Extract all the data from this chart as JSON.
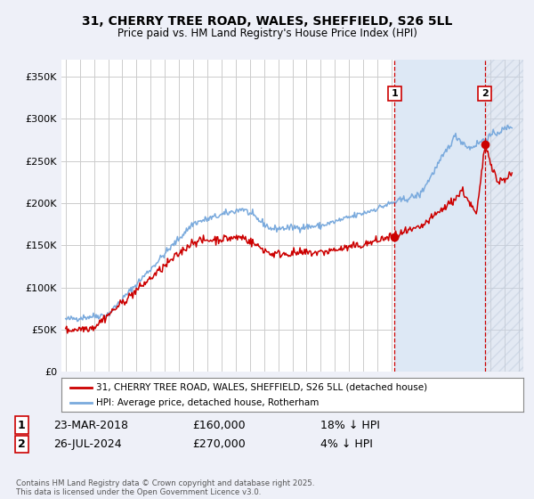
{
  "title_line1": "31, CHERRY TREE ROAD, WALES, SHEFFIELD, S26 5LL",
  "title_line2": "Price paid vs. HM Land Registry's House Price Index (HPI)",
  "ylabel_ticks": [
    "£0",
    "£50K",
    "£100K",
    "£150K",
    "£200K",
    "£250K",
    "£300K",
    "£350K"
  ],
  "ytick_vals": [
    0,
    50000,
    100000,
    150000,
    200000,
    250000,
    300000,
    350000
  ],
  "ylim": [
    0,
    370000
  ],
  "xlim_start": 1994.7,
  "xlim_end": 2027.3,
  "hpi_color": "#7aaadd",
  "price_color": "#cc0000",
  "bg_color": "#eef0f8",
  "plot_bg": "#ffffff",
  "grid_color": "#cccccc",
  "marker1_x": 2018.22,
  "marker1_y": 160000,
  "marker2_x": 2024.57,
  "marker2_y": 270000,
  "legend_line1": "31, CHERRY TREE ROAD, WALES, SHEFFIELD, S26 5LL (detached house)",
  "legend_line2": "HPI: Average price, detached house, Rotherham",
  "table_row1": [
    "1",
    "23-MAR-2018",
    "£160,000",
    "18% ↓ HPI"
  ],
  "table_row2": [
    "2",
    "26-JUL-2024",
    "£270,000",
    "4% ↓ HPI"
  ],
  "footer": "Contains HM Land Registry data © Crown copyright and database right 2025.\nThis data is licensed under the Open Government Licence v3.0.",
  "vline_color": "#cc0000",
  "shade_color": "#dde8f5",
  "hatch_color": "#c8d4e8"
}
